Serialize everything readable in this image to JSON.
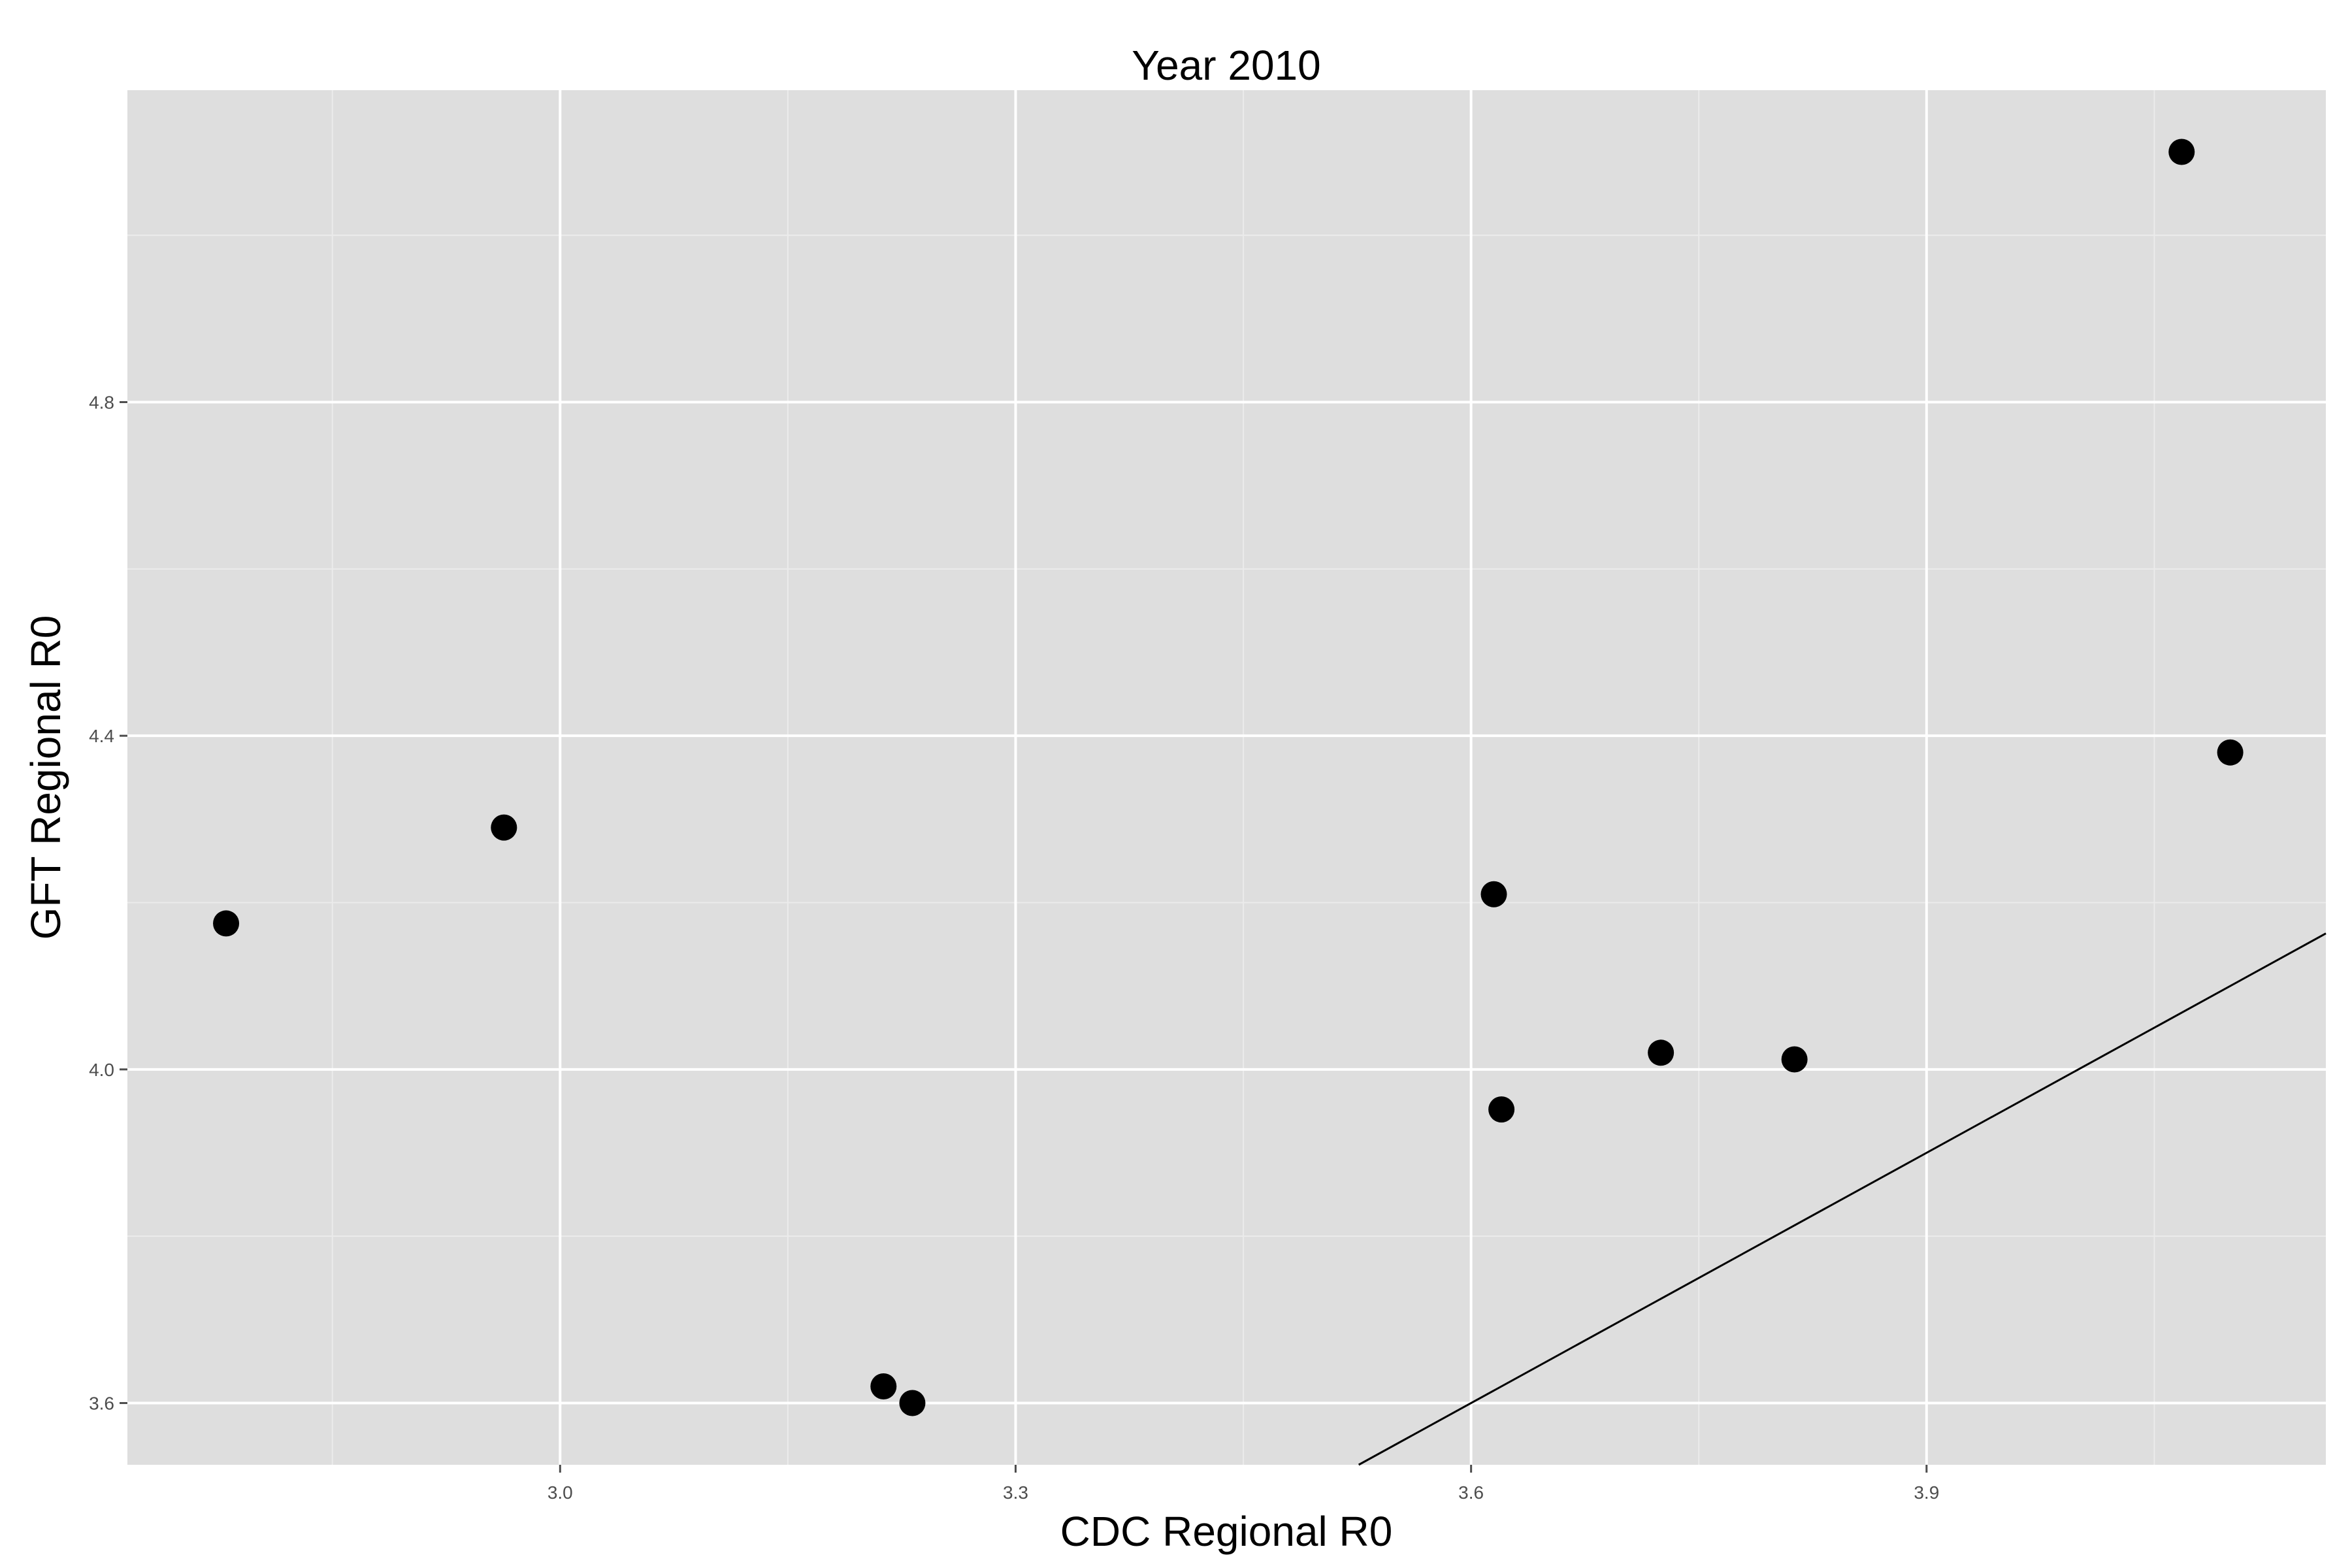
{
  "chart_data": {
    "type": "scatter",
    "title": "Year 2010",
    "xlabel": "CDC Regional R0",
    "ylabel": "GFT Regional R0",
    "xlim": [
      2.715,
      4.163
    ],
    "ylim": [
      3.526,
      5.174
    ],
    "x_ticks": [
      3.0,
      3.3,
      3.6,
      3.9
    ],
    "x_tick_labels": [
      "3.0",
      "3.3",
      "3.6",
      "3.9"
    ],
    "y_ticks": [
      3.6,
      4.0,
      4.4,
      4.8
    ],
    "y_tick_labels": [
      "3.6",
      "4.0",
      "4.4",
      "4.8"
    ],
    "grid": true,
    "legend": "none",
    "colors": {
      "panel": "#dedede",
      "grid_major": "#ffffff",
      "grid_minor": "#ebebeb",
      "point": "#000000",
      "line": "#000000"
    },
    "points": [
      {
        "x": 2.78,
        "y": 4.175
      },
      {
        "x": 2.963,
        "y": 4.29
      },
      {
        "x": 3.213,
        "y": 3.62
      },
      {
        "x": 3.232,
        "y": 3.6
      },
      {
        "x": 3.615,
        "y": 4.21
      },
      {
        "x": 3.62,
        "y": 3.952
      },
      {
        "x": 3.725,
        "y": 4.02
      },
      {
        "x": 3.813,
        "y": 4.012
      },
      {
        "x": 4.068,
        "y": 5.1
      },
      {
        "x": 4.1,
        "y": 4.38
      }
    ],
    "reference_line": {
      "slope": 1,
      "intercept": 0
    }
  }
}
